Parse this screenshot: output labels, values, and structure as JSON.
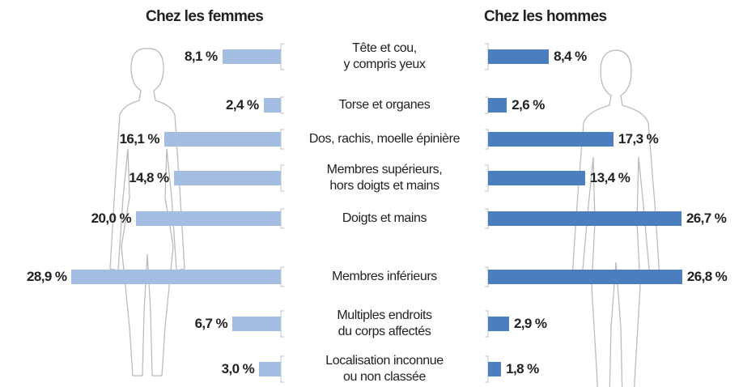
{
  "chart_data": {
    "type": "butterfly",
    "categories": [
      "Tête et cou,\ny compris yeux",
      "Torse et organes",
      "Dos, rachis, moelle épinière",
      "Membres supérieurs,\nhors doigts et mains",
      "Doigts et mains",
      "Membres inférieurs",
      "Multiples endroits\ndu corps affectés",
      "Localisation inconnue\nou non classée"
    ],
    "series": [
      {
        "name": "Chez les femmes",
        "color": "#a3bde3",
        "values": [
          8.1,
          2.4,
          16.1,
          14.8,
          20.0,
          28.9,
          6.7,
          3.0
        ],
        "value_labels": [
          "8,1 %",
          "2,4 %",
          "16,1 %",
          "14,8 %",
          "20,0 %",
          "28,9 %",
          "6,7 %",
          "3,0 %"
        ]
      },
      {
        "name": "Chez les hommes",
        "color": "#4a7ebf",
        "values": [
          8.4,
          2.6,
          17.3,
          13.4,
          26.7,
          26.8,
          2.9,
          1.8
        ],
        "value_labels": [
          "8,4 %",
          "2,6 %",
          "17,3 %",
          "13,4 %",
          "26,7 %",
          "26,8 %",
          "2,9 %",
          "1,8 %"
        ]
      }
    ]
  }
}
